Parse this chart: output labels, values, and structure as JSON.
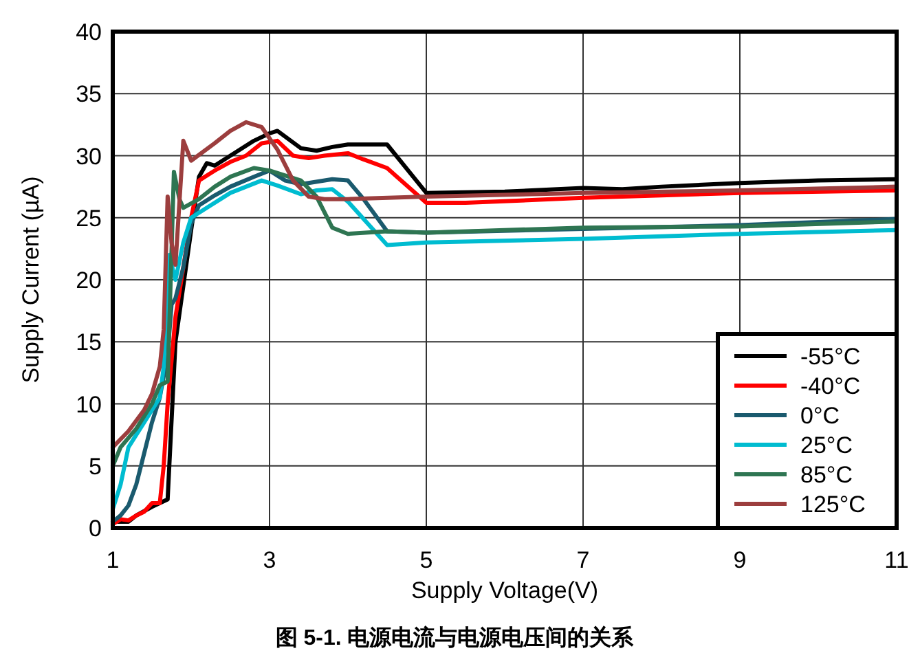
{
  "chart_data": {
    "type": "line",
    "xlabel": "Supply Voltage(V)",
    "ylabel": "Supply Current (µA)",
    "annotations": [
      "图 5-1. 电源电流与电源电压间的关系"
    ],
    "xlim": [
      1,
      11
    ],
    "xticks": [
      1,
      3,
      5,
      7,
      9,
      11
    ],
    "ylim": [
      0,
      40
    ],
    "yticks": [
      0,
      5,
      10,
      15,
      20,
      25,
      30,
      35,
      40
    ],
    "grid": true,
    "legend": "bottom right",
    "line_style": "solid",
    "marker": "none",
    "series": [
      {
        "name": "-55°C",
        "color": "#000000",
        "x": [
          1,
          1.2,
          1.3,
          1.5,
          1.7,
          1.8,
          2.0,
          2.1,
          2.2,
          2.3,
          2.5,
          2.8,
          3.0,
          3.1,
          3.4,
          3.6,
          3.8,
          4.0,
          4.5,
          5,
          6,
          7,
          7.5,
          8,
          9,
          10,
          11
        ],
        "values": [
          0.5,
          0.5,
          1.0,
          1.7,
          2.3,
          15,
          24,
          28.3,
          29.4,
          29.2,
          30,
          31.2,
          31.8,
          32,
          30.6,
          30.4,
          30.7,
          30.9,
          30.9,
          27,
          27.1,
          27.4,
          27.3,
          27.5,
          27.8,
          28,
          28.1
        ]
      },
      {
        "name": "-40°C",
        "color": "#ff0000",
        "x": [
          1,
          1.1,
          1.2,
          1.3,
          1.4,
          1.5,
          1.6,
          1.65,
          1.7,
          1.8,
          2.0,
          2.1,
          2.3,
          2.5,
          2.7,
          2.9,
          3.1,
          3.3,
          3.5,
          3.7,
          4.0,
          4.2,
          4.5,
          5,
          5.5,
          7,
          8,
          9,
          11
        ],
        "values": [
          0.3,
          0.7,
          0.6,
          1.0,
          1.3,
          2.0,
          2.0,
          5,
          10,
          17,
          25,
          28,
          28.8,
          29.5,
          30,
          31,
          31.2,
          30,
          29.8,
          30,
          30.2,
          29.7,
          29,
          26.2,
          26.2,
          26.6,
          26.8,
          27,
          27.2
        ]
      },
      {
        "name": "0°C",
        "color": "#1a5a6e",
        "x": [
          1,
          1.1,
          1.2,
          1.3,
          1.4,
          1.5,
          1.6,
          1.7,
          1.75,
          1.8,
          1.9,
          2.0,
          2.1,
          2.3,
          2.5,
          2.8,
          3.0,
          3.2,
          3.4,
          3.8,
          4.0,
          4.2,
          4.5,
          5,
          7,
          9,
          11
        ],
        "values": [
          0.5,
          1.0,
          1.8,
          3.5,
          6,
          8.5,
          10.5,
          14,
          18,
          18.5,
          21,
          24.5,
          26,
          26.8,
          27.5,
          28.3,
          28.8,
          28,
          27.7,
          28.1,
          28,
          26.5,
          23.9,
          23.8,
          24.1,
          24.4,
          24.9
        ]
      },
      {
        "name": "25°C",
        "color": "#00bcd0",
        "x": [
          1,
          1.1,
          1.2,
          1.4,
          1.6,
          1.65,
          1.72,
          1.8,
          1.9,
          2.0,
          2.2,
          2.5,
          2.7,
          2.9,
          3.1,
          3.4,
          3.6,
          3.8,
          4.0,
          4.5,
          5,
          7,
          9,
          11
        ],
        "values": [
          1.5,
          3.5,
          6.5,
          8.5,
          10.5,
          13,
          22,
          20,
          23,
          25,
          25.8,
          27,
          27.5,
          28,
          27.6,
          26.9,
          27.2,
          27.3,
          26.3,
          22.8,
          23,
          23.3,
          23.7,
          24
        ]
      },
      {
        "name": "85°C",
        "color": "#2e7552",
        "x": [
          1,
          1.1,
          1.3,
          1.5,
          1.6,
          1.7,
          1.78,
          1.85,
          1.9,
          2.1,
          2.3,
          2.5,
          2.8,
          3.0,
          3.2,
          3.4,
          3.6,
          3.8,
          4.0,
          4.5,
          5,
          7,
          9,
          11
        ],
        "values": [
          5,
          6.5,
          8,
          10,
          11.5,
          11.8,
          28.7,
          26.5,
          25.8,
          26.5,
          27.5,
          28.3,
          29,
          28.8,
          28.4,
          28,
          26.7,
          24.2,
          23.7,
          23.9,
          23.8,
          24.2,
          24.3,
          24.7
        ]
      },
      {
        "name": "125°C",
        "color": "#9c3e3e",
        "x": [
          1,
          1.2,
          1.4,
          1.5,
          1.6,
          1.65,
          1.7,
          1.75,
          1.8,
          1.9,
          2.0,
          2.3,
          2.5,
          2.7,
          2.9,
          3.1,
          3.3,
          3.5,
          3.7,
          4,
          5,
          7,
          9,
          11
        ],
        "values": [
          6.5,
          7.8,
          9.5,
          10.8,
          13,
          16,
          26.7,
          23,
          21.2,
          31.2,
          29.6,
          31,
          32,
          32.7,
          32.3,
          30.5,
          28,
          26.7,
          26.5,
          26.5,
          26.7,
          27,
          27.2,
          27.5
        ]
      }
    ]
  }
}
